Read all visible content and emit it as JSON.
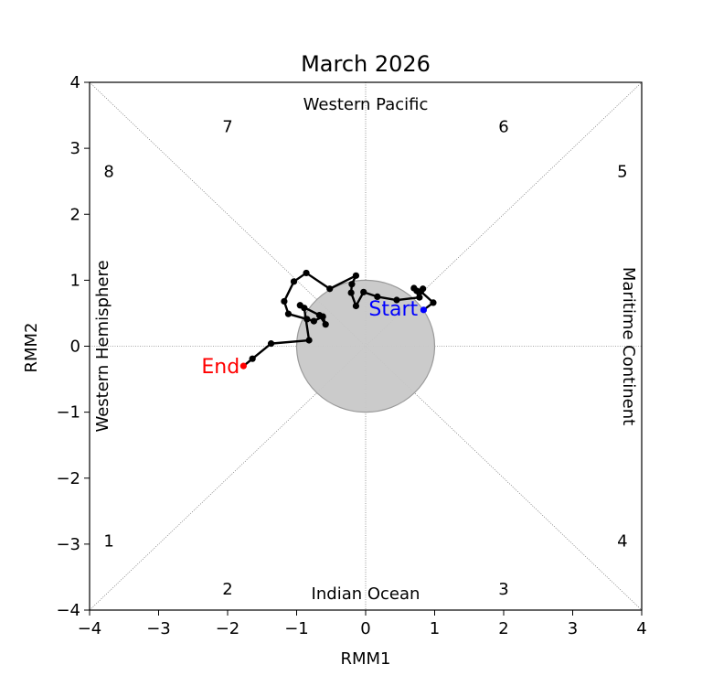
{
  "chart_data": {
    "type": "line",
    "title": "March 2026",
    "xlabel": "RMM1",
    "ylabel": "RMM2",
    "xlim": [
      -4,
      4
    ],
    "ylim": [
      -4,
      4
    ],
    "xticks": [
      -4,
      -3,
      -2,
      -1,
      0,
      1,
      2,
      3,
      4
    ],
    "yticks": [
      -4,
      -3,
      -2,
      -1,
      0,
      1,
      2,
      3,
      4
    ],
    "tick_labels": [
      "−4",
      "−3",
      "−2",
      "−1",
      "0",
      "1",
      "2",
      "3",
      "4"
    ],
    "unit_circle_radius": 1,
    "region_labels": {
      "top": "Western Pacific",
      "bottom": "Indian Ocean",
      "left": "Western Hemisphere",
      "right": "Maritime Continent"
    },
    "phase_labels": [
      {
        "label": "1",
        "x": -3.72,
        "y": -2.94
      },
      {
        "label": "2",
        "x": -2.0,
        "y": -3.67
      },
      {
        "label": "3",
        "x": 2.0,
        "y": -3.67
      },
      {
        "label": "4",
        "x": 3.72,
        "y": -2.94
      },
      {
        "label": "5",
        "x": 3.72,
        "y": 2.66
      },
      {
        "label": "6",
        "x": 2.0,
        "y": 3.34
      },
      {
        "label": "7",
        "x": -2.0,
        "y": 3.34
      },
      {
        "label": "8",
        "x": -3.72,
        "y": 2.66
      }
    ],
    "start_label": "Start",
    "end_label": "End",
    "colors": {
      "line": "#000000",
      "start": "#0000ff",
      "end": "#ff0000",
      "circle_fill": "#c8c8c8",
      "circle_edge": "#999999"
    },
    "series": [
      {
        "x": [
          0.84,
          0.98,
          0.8,
          0.83,
          0.74,
          0.7,
          0.78,
          0.45,
          0.17,
          -0.03,
          -0.14,
          -0.21,
          -0.2,
          -0.14,
          -0.52,
          -0.86,
          -1.04,
          -1.18,
          -1.12,
          -0.85,
          -0.75,
          -0.62,
          -0.58,
          -0.67,
          -0.95,
          -0.89,
          -0.82,
          -1.37,
          -1.64,
          -1.77
        ],
        "y": [
          0.55,
          0.66,
          0.83,
          0.87,
          0.84,
          0.88,
          0.74,
          0.7,
          0.75,
          0.82,
          0.61,
          0.81,
          0.94,
          1.07,
          0.87,
          1.11,
          0.98,
          0.68,
          0.49,
          0.41,
          0.38,
          0.45,
          0.33,
          0.47,
          0.62,
          0.58,
          0.09,
          0.04,
          -0.19,
          -0.3
        ]
      }
    ]
  }
}
